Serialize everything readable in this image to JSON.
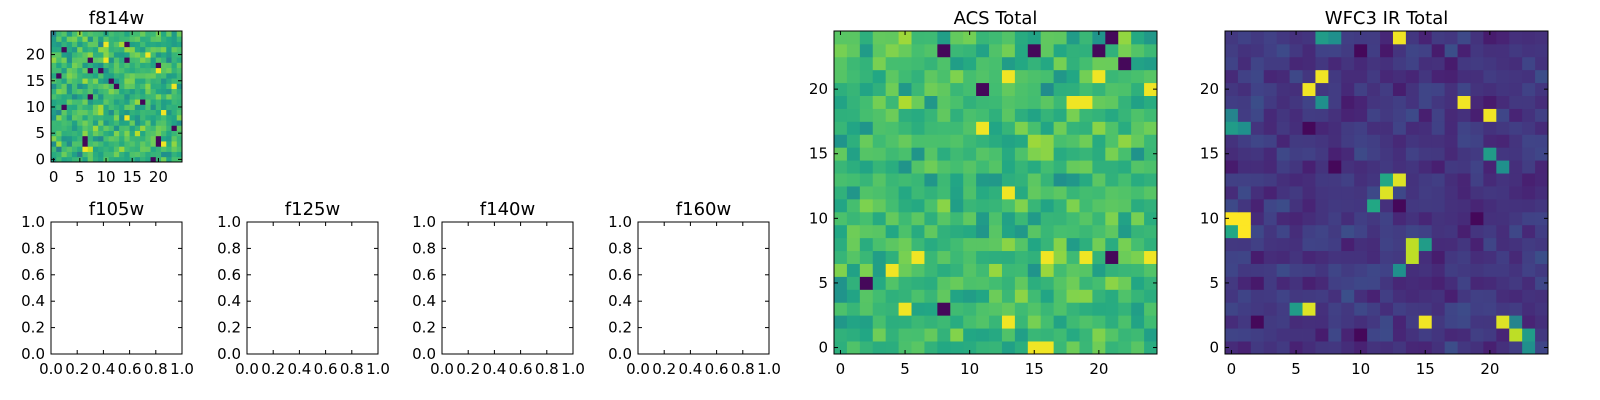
{
  "chart_data": [
    {
      "type": "heatmap",
      "title": "f814w",
      "colormap": "viridis",
      "grid": false,
      "size": [
        25,
        25
      ],
      "xlim": [
        -0.5,
        24.5
      ],
      "ylim": [
        -0.5,
        24.5
      ],
      "xticks": [
        0,
        5,
        10,
        15,
        20
      ],
      "yticks": [
        0,
        5,
        10,
        15,
        20
      ],
      "xticklabels": [
        "0",
        "5",
        "10",
        "15",
        "20"
      ],
      "yticklabels": [
        "0",
        "5",
        "10",
        "15",
        "20"
      ],
      "value_range": [
        0,
        1
      ],
      "seed": 11,
      "base": 0.66,
      "spread": 0.26,
      "highlights": []
    },
    {
      "type": "heatmap",
      "title": "f105w",
      "grid": false,
      "xlim": [
        0,
        1
      ],
      "ylim": [
        0,
        1
      ],
      "xticks": [
        0,
        0.2,
        0.4,
        0.6,
        0.8,
        1.0
      ],
      "yticks": [
        0,
        0.2,
        0.4,
        0.6,
        0.8,
        1.0
      ],
      "xticklabels": [
        "0.0",
        "0.2",
        "0.4",
        "0.6",
        "0.8",
        "1.0"
      ],
      "yticklabels": [
        "0.0",
        "0.2",
        "0.4",
        "0.6",
        "0.8",
        "1.0"
      ],
      "values": []
    },
    {
      "type": "heatmap",
      "title": "f125w",
      "grid": false,
      "xlim": [
        0,
        1
      ],
      "ylim": [
        0,
        1
      ],
      "xticks": [
        0,
        0.2,
        0.4,
        0.6,
        0.8,
        1.0
      ],
      "yticks": [
        0,
        0.2,
        0.4,
        0.6,
        0.8,
        1.0
      ],
      "xticklabels": [
        "0.0",
        "0.2",
        "0.4",
        "0.6",
        "0.8",
        "1.0"
      ],
      "yticklabels": [
        "0.0",
        "0.2",
        "0.4",
        "0.6",
        "0.8",
        "1.0"
      ],
      "values": []
    },
    {
      "type": "heatmap",
      "title": "f140w",
      "grid": false,
      "xlim": [
        0,
        1
      ],
      "ylim": [
        0,
        1
      ],
      "xticks": [
        0,
        0.2,
        0.4,
        0.6,
        0.8,
        1.0
      ],
      "yticks": [
        0,
        0.2,
        0.4,
        0.6,
        0.8,
        1.0
      ],
      "xticklabels": [
        "0.0",
        "0.2",
        "0.4",
        "0.6",
        "0.8",
        "1.0"
      ],
      "yticklabels": [
        "0.0",
        "0.2",
        "0.4",
        "0.6",
        "0.8",
        "1.0"
      ],
      "values": []
    },
    {
      "type": "heatmap",
      "title": "f160w",
      "grid": false,
      "xlim": [
        0,
        1
      ],
      "ylim": [
        0,
        1
      ],
      "xticks": [
        0,
        0.2,
        0.4,
        0.6,
        0.8,
        1.0
      ],
      "yticks": [
        0,
        0.2,
        0.4,
        0.6,
        0.8,
        1.0
      ],
      "xticklabels": [
        "0.0",
        "0.2",
        "0.4",
        "0.6",
        "0.8",
        "1.0"
      ],
      "yticklabels": [
        "0.0",
        "0.2",
        "0.4",
        "0.6",
        "0.8",
        "1.0"
      ],
      "values": []
    },
    {
      "type": "heatmap",
      "title": "ACS Total",
      "colormap": "viridis",
      "grid": false,
      "size": [
        25,
        25
      ],
      "xlim": [
        -0.5,
        24.5
      ],
      "ylim": [
        -0.5,
        24.5
      ],
      "xticks": [
        0,
        5,
        10,
        15,
        20
      ],
      "yticks": [
        0,
        5,
        10,
        15,
        20
      ],
      "xticklabels": [
        "0",
        "5",
        "10",
        "15",
        "20"
      ],
      "yticklabels": [
        "0",
        "5",
        "10",
        "15",
        "20"
      ],
      "value_range": [
        0,
        1
      ],
      "seed": 23,
      "base": 0.68,
      "spread": 0.22,
      "highlights": []
    },
    {
      "type": "heatmap",
      "title": "WFC3 IR Total",
      "colormap": "viridis",
      "grid": false,
      "size": [
        25,
        25
      ],
      "xlim": [
        -0.5,
        24.5
      ],
      "ylim": [
        -0.5,
        24.5
      ],
      "xticks": [
        0,
        5,
        10,
        15,
        20
      ],
      "yticks": [
        0,
        5,
        10,
        15,
        20
      ],
      "xticklabels": [
        "0",
        "5",
        "10",
        "15",
        "20"
      ],
      "yticklabels": [
        "0",
        "5",
        "10",
        "15",
        "20"
      ],
      "value_range": [
        0,
        1
      ],
      "seed": 37,
      "base": 0.16,
      "spread": 0.11,
      "highlights": [
        {
          "x": 0,
          "y": 10,
          "value": 1.0
        },
        {
          "x": 1,
          "y": 10,
          "value": 1.0
        },
        {
          "x": 1,
          "y": 9,
          "value": 1.0
        },
        {
          "x": 0,
          "y": 9,
          "value": 0.6
        },
        {
          "x": 12,
          "y": 12,
          "value": 0.95
        },
        {
          "x": 13,
          "y": 13,
          "value": 0.95
        },
        {
          "x": 12,
          "y": 13,
          "value": 0.6
        },
        {
          "x": 11,
          "y": 11,
          "value": 0.6
        },
        {
          "x": 14,
          "y": 8,
          "value": 0.9
        },
        {
          "x": 14,
          "y": 7,
          "value": 0.9
        },
        {
          "x": 15,
          "y": 8,
          "value": 0.55
        },
        {
          "x": 5,
          "y": 3,
          "value": 0.55
        },
        {
          "x": 6,
          "y": 3,
          "value": 0.95
        },
        {
          "x": 21,
          "y": 2,
          "value": 0.95
        },
        {
          "x": 22,
          "y": 1,
          "value": 0.9
        },
        {
          "x": 23,
          "y": 1,
          "value": 0.55
        },
        {
          "x": 23,
          "y": 0,
          "value": 0.5
        },
        {
          "x": 22,
          "y": 2,
          "value": 0.45
        },
        {
          "x": 20,
          "y": 15,
          "value": 0.55
        },
        {
          "x": 21,
          "y": 14,
          "value": 0.5
        },
        {
          "x": 0,
          "y": 17,
          "value": 0.55
        },
        {
          "x": 1,
          "y": 17,
          "value": 0.5
        },
        {
          "x": 0,
          "y": 18,
          "value": 0.45
        },
        {
          "x": 7,
          "y": 19,
          "value": 0.5
        },
        {
          "x": 7,
          "y": 24,
          "value": 0.55
        },
        {
          "x": 8,
          "y": 24,
          "value": 0.5
        },
        {
          "x": 13,
          "y": 6,
          "value": 0.5
        }
      ]
    }
  ]
}
